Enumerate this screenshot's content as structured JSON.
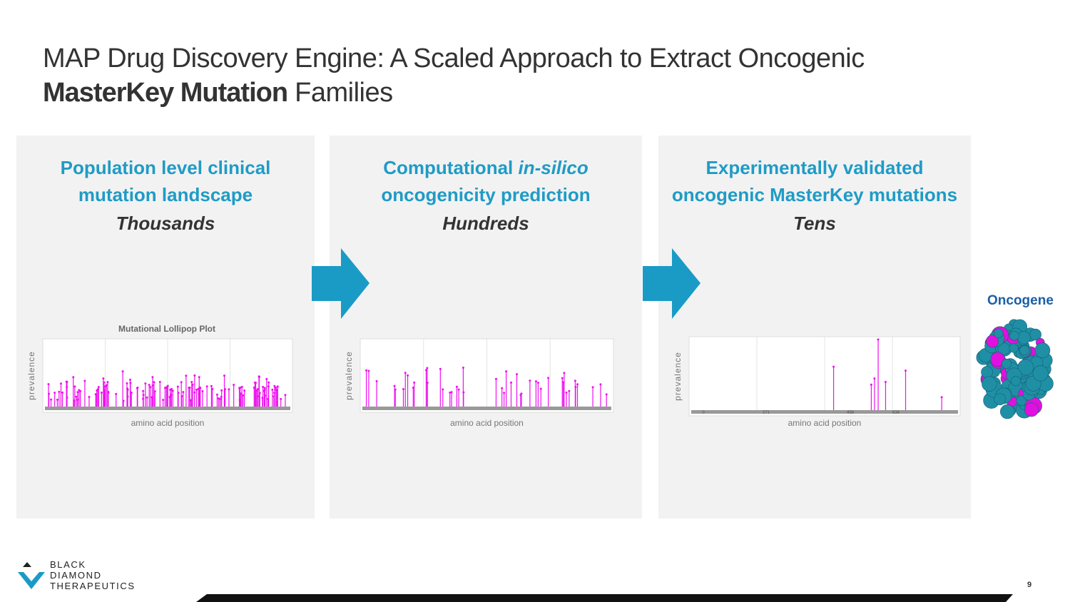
{
  "header": {
    "title_line1": "MAP Drug Discovery Engine: A Scaled Approach to Extract Oncogenic",
    "title_bold": "MasterKey Mutation",
    "title_rest": " Families"
  },
  "panels": [
    {
      "heading_line1": "Population level clinical",
      "heading_line2": "mutation landscape",
      "count": "Thousands",
      "plot_title": "Mutational Lollipop Plot",
      "y_label": "prevalence",
      "x_label": "amino acid position"
    },
    {
      "heading_line1_start": "Computational ",
      "heading_line1_italic": "in-silico",
      "heading_line2": "oncogenicity prediction",
      "count": "Hundreds",
      "y_label": "prevalence",
      "x_label": "amino acid position"
    },
    {
      "heading_line1": "Experimentally validated",
      "heading_line2": "oncogenic MasterKey mutations",
      "count": "Tens",
      "y_label": "prevalence",
      "x_label": "amino acid position",
      "x_ticks": [
        "0",
        "271",
        "458",
        "634"
      ]
    }
  ],
  "oncogene_label": "Oncogene",
  "logo": [
    "BLACK",
    "DIAMOND",
    "THERAPEUTICS"
  ],
  "page_number": "9"
}
